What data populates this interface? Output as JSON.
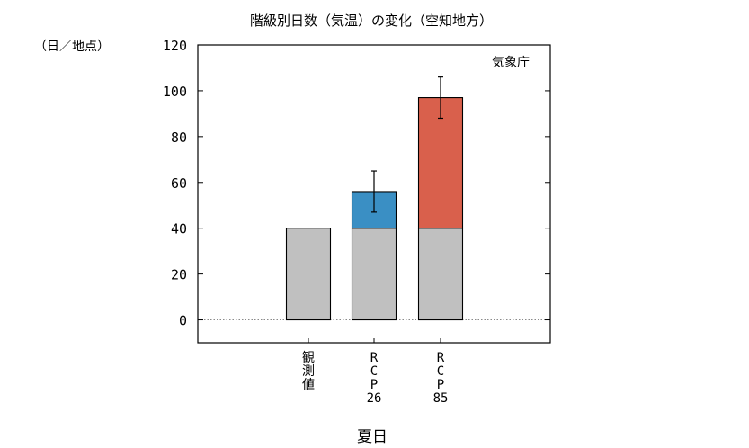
{
  "chart_data": {
    "type": "bar",
    "title": "階級別日数（気温）の変化（空知地方）",
    "ylabel": "（日／地点）",
    "xlabel": "夏日",
    "source": "気象庁",
    "ylim": [
      -10,
      120
    ],
    "yticks": [
      0,
      20,
      40,
      60,
      80,
      100,
      120
    ],
    "categories": [
      "観測値",
      "RCP26",
      "RCP85"
    ],
    "category_lines": [
      [
        "観",
        "測",
        "値"
      ],
      [
        "R",
        "C",
        "P",
        "26"
      ],
      [
        "R",
        "C",
        "P",
        "85"
      ]
    ],
    "stacked": true,
    "series": [
      {
        "values": [
          40,
          40,
          40
        ],
        "color": "#c0c0c0"
      },
      {
        "values": [
          0,
          16,
          57
        ],
        "colors": [
          "#c0c0c0",
          "#3a8fc4",
          "#d9604c"
        ]
      }
    ],
    "totals": [
      40,
      56,
      97
    ],
    "error_bars": [
      null,
      [
        47,
        65
      ],
      [
        88,
        106
      ]
    ],
    "zero_line": "dotted",
    "grid": false
  }
}
